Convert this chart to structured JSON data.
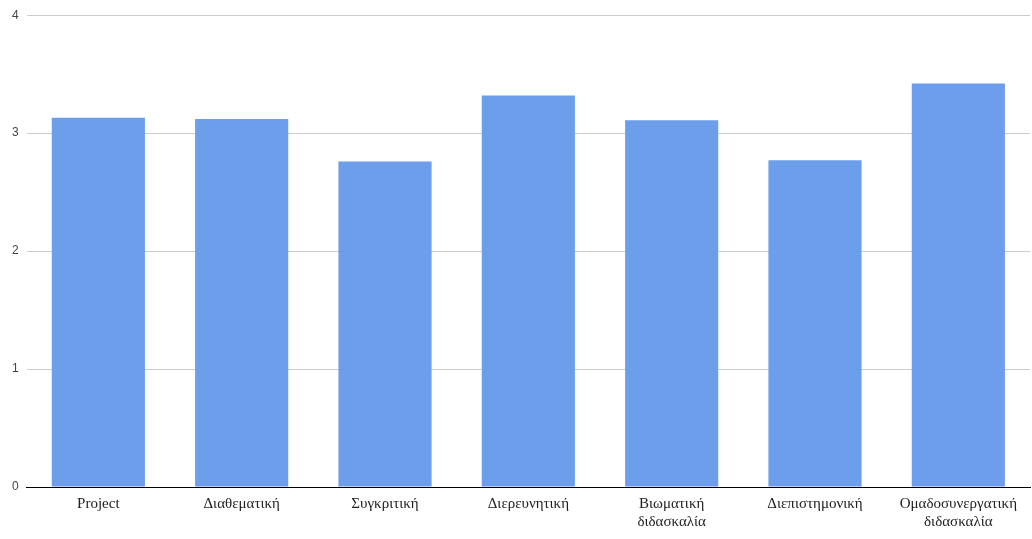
{
  "chart_data": {
    "type": "bar",
    "categories": [
      "Project",
      "Διαθεματική",
      "Συγκριτική",
      "Διερευνητική",
      "Βιωματική διδασκαλία",
      "Διεπιστημονική",
      "Ομαδοσυνεργατική διδασκαλία"
    ],
    "values": [
      3.13,
      3.12,
      2.76,
      3.32,
      3.11,
      2.77,
      3.42
    ],
    "color": "#6d9eeb",
    "ylim": [
      0,
      4
    ],
    "yticks": [
      0,
      1,
      2,
      3,
      4
    ],
    "grid": "y",
    "legend": false
  }
}
